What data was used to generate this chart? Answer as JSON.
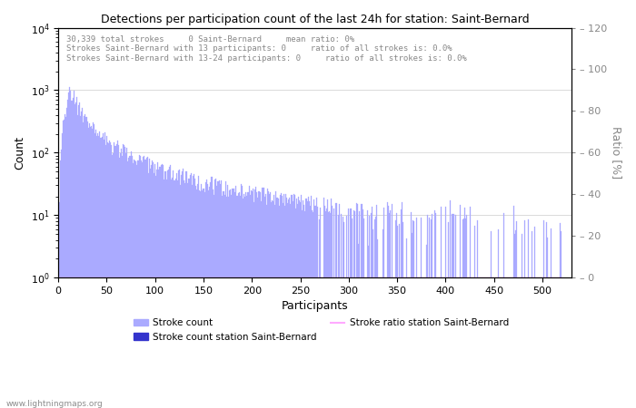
{
  "title": "Detections per participation count of the last 24h for station: Saint-Bernard",
  "xlabel": "Participants",
  "ylabel_left": "Count",
  "ylabel_right": "Ratio [%]",
  "annotation_lines": [
    "30,339 total strokes     0 Saint-Bernard     mean ratio: 0%",
    "Strokes Saint-Bernard with 13 participants: 0     ratio of all strokes is: 0.0%",
    "Strokes Saint-Bernard with 13-24 participants: 0     ratio of all strokes is: 0.0%"
  ],
  "bar_color_light": "#aaaaff",
  "bar_color_dark": "#3333cc",
  "line_color": "#ffaaff",
  "watermark": "www.lightningmaps.org",
  "xlim": [
    0,
    530
  ],
  "ylim_right": [
    0,
    120
  ],
  "right_yticks": [
    0,
    20,
    40,
    60,
    80,
    100,
    120
  ],
  "legend_labels": [
    "Stroke count",
    "Stroke count station Saint-Bernard",
    "Stroke ratio station Saint-Bernard"
  ],
  "total_strokes": 30339,
  "x_ticks": [
    0,
    50,
    100,
    150,
    200,
    250,
    300,
    350,
    400,
    450,
    500
  ]
}
